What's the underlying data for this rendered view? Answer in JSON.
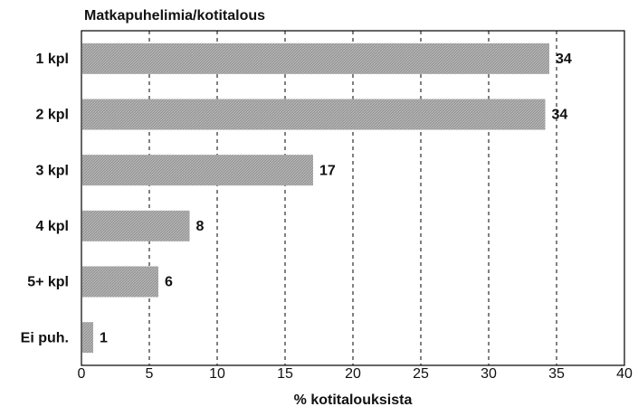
{
  "chart_data": {
    "type": "barh",
    "title": "Matkapuhelimia/kotitalous",
    "x_label": "% kotitalouksista",
    "categories": [
      "1 kpl",
      "2 kpl",
      "3 kpl",
      "4 kpl",
      "5+ kpl",
      "Ei puh."
    ],
    "values": [
      34.4,
      34.1,
      17,
      7.9,
      5.6,
      0.8
    ],
    "value_labels": [
      "34",
      "34",
      "17",
      "8",
      "6",
      "1"
    ],
    "color": "#a9a9a9",
    "xlim": [
      0,
      40
    ],
    "xticks": [
      0,
      5,
      10,
      15,
      20,
      25,
      30,
      35,
      40
    ],
    "grid": true
  }
}
